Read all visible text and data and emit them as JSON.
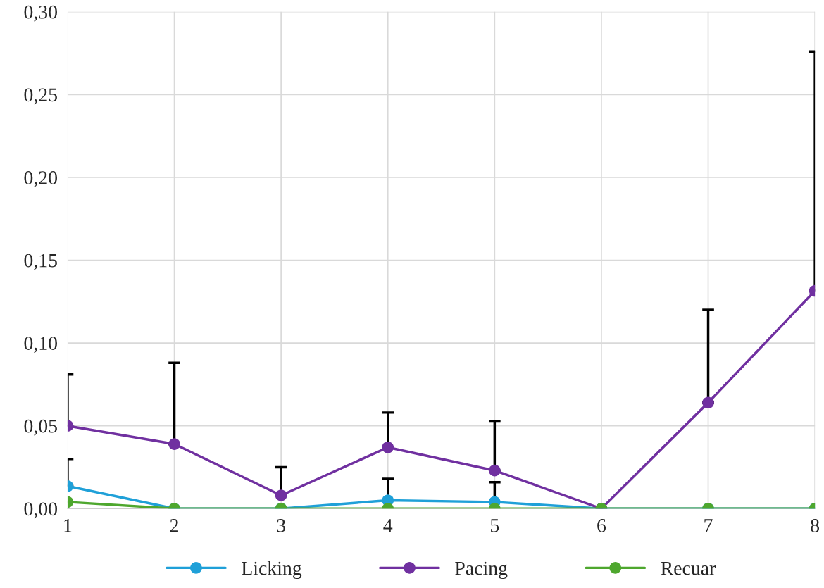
{
  "chart_data": {
    "type": "line",
    "x": [
      1,
      2,
      3,
      4,
      5,
      6,
      7,
      8
    ],
    "series": [
      {
        "name": "Licking",
        "color": "#1fa0d8",
        "values": [
          0.0136,
          0,
          0,
          0.005,
          0.004,
          0,
          0,
          0
        ],
        "errors": [
          [
            0.0136,
            0.03
          ],
          null,
          null,
          [
            0.005,
            0.018
          ],
          [
            0.004,
            0.016
          ],
          null,
          null,
          null
        ]
      },
      {
        "name": "Pacing",
        "color": "#7030a0",
        "values": [
          0.05,
          0.039,
          0.008,
          0.037,
          0.023,
          0,
          0.064,
          0.1315
        ],
        "errors": [
          [
            0.05,
            0.081
          ],
          [
            0.039,
            0.088
          ],
          [
            0.008,
            0.025
          ],
          [
            0.037,
            0.058
          ],
          [
            0.023,
            0.053
          ],
          null,
          [
            0.064,
            0.12
          ],
          [
            0.1315,
            0.276
          ]
        ]
      },
      {
        "name": "Recuar",
        "color": "#4ea72e",
        "values": [
          0.004,
          0,
          0,
          0,
          0,
          0,
          0,
          0
        ]
      }
    ],
    "xlim": [
      1,
      8
    ],
    "xticks": [
      1,
      2,
      3,
      4,
      5,
      6,
      7,
      8
    ],
    "ylim": [
      0,
      0.3
    ],
    "yticks": [
      {
        "value": 0,
        "label": "0,00"
      },
      {
        "value": 0.05,
        "label": "0,05"
      },
      {
        "value": 0.1,
        "label": "0,10"
      },
      {
        "value": 0.15,
        "label": "0,15"
      },
      {
        "value": 0.2,
        "label": "0,20"
      },
      {
        "value": 0.25,
        "label": "0,25"
      },
      {
        "value": 0.3,
        "label": "0,30"
      }
    ],
    "grid": true,
    "legend": "bottom",
    "marker": "circle",
    "line_style": "solid"
  }
}
